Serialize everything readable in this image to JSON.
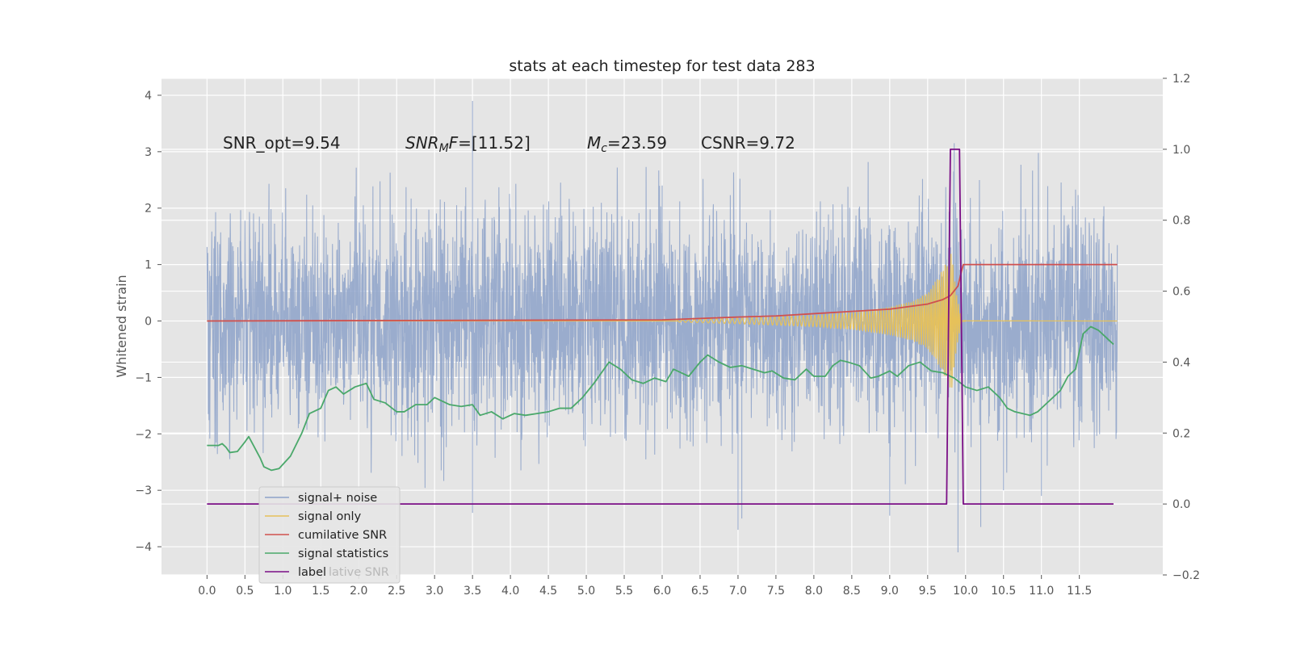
{
  "chart_data": {
    "type": "line",
    "title": "stats at each timestep for test data 283",
    "ylabel": "Whitened strain",
    "xlim": [
      -0.6,
      12.6
    ],
    "ylim": [
      -4.5,
      4.3
    ],
    "y2lim": [
      -0.2,
      1.2
    ],
    "x_ticks": [
      0.0,
      0.5,
      1.0,
      1.5,
      2.0,
      2.5,
      3.0,
      3.5,
      4.0,
      4.5,
      5.0,
      5.5,
      6.0,
      6.5,
      7.0,
      7.5,
      8.0,
      8.5,
      9.0,
      9.5,
      10.0,
      10.5,
      11.0,
      11.5
    ],
    "x_tick_labels": [
      "0.0",
      "0.5",
      "1.0",
      "1.5",
      "2.0",
      "2.5",
      "3.0",
      "3.5",
      "4.0",
      "4.5",
      "5.0",
      "5.5",
      "6.0",
      "6.5",
      "7.0",
      "7.5",
      "8.0",
      "8.5",
      "9.0",
      "9.5",
      "10.0",
      "10.5",
      "11.0",
      "11.5"
    ],
    "y_ticks": [
      -4,
      -3,
      -2,
      -1,
      0,
      1,
      2,
      3,
      4
    ],
    "y_tick_labels": [
      "−4",
      "−3",
      "−2",
      "−1",
      "0",
      "1",
      "2",
      "3",
      "4"
    ],
    "y2_ticks": [
      -0.2,
      0.0,
      0.2,
      0.4,
      0.6,
      0.8,
      1.0,
      1.2
    ],
    "y2_tick_labels": [
      "−0.2",
      "0.0",
      "0.2",
      "0.4",
      "0.6",
      "0.8",
      "1.0",
      "1.2"
    ],
    "grid": true,
    "legend_placement": "lower-left",
    "annotations": [
      {
        "id": "snr-opt",
        "text": "SNR_opt=9.54",
        "x": 0.2,
        "y": 3.2
      },
      {
        "id": "snr-mf",
        "text": "SNR_MF=[11.52]",
        "x": 2.6,
        "y": 3.2
      },
      {
        "id": "mc",
        "text": "M_c=23.59",
        "x": 5.0,
        "y": 3.2
      },
      {
        "id": "csnr",
        "text": "CSNR=9.72",
        "x": 6.5,
        "y": 3.2
      }
    ],
    "series": [
      {
        "name": "signal+ noise",
        "axis": "left",
        "color": "#8da2c9",
        "x_range": [
          0.0,
          12.0
        ],
        "typical_range": [
          -1.8,
          1.8
        ],
        "peak_points": [
          [
            3.5,
            3.9
          ],
          [
            3.5,
            -3.4
          ],
          [
            6.0,
            2.4
          ],
          [
            7.0,
            -3.7
          ],
          [
            7.05,
            -3.5
          ],
          [
            9.0,
            -3.45
          ],
          [
            9.85,
            3.15
          ],
          [
            9.9,
            -4.1
          ],
          [
            10.2,
            -3.65
          ],
          [
            10.5,
            -3.0
          ],
          [
            11.0,
            -3.1
          ]
        ]
      },
      {
        "name": "signal only",
        "axis": "left",
        "color": "#e6c15a",
        "envelope": [
          [
            6.2,
            0.02
          ],
          [
            7.0,
            0.05
          ],
          [
            8.0,
            0.1
          ],
          [
            8.5,
            0.15
          ],
          [
            9.0,
            0.25
          ],
          [
            9.3,
            0.35
          ],
          [
            9.5,
            0.5
          ],
          [
            9.65,
            0.8
          ],
          [
            9.75,
            1.05
          ],
          [
            9.82,
            1.25
          ],
          [
            9.88,
            0.5
          ],
          [
            9.95,
            0.01
          ],
          [
            12.0,
            0.0
          ]
        ]
      },
      {
        "name": "cumilative SNR",
        "axis": "left",
        "color": "#d0504f",
        "points": [
          [
            0.0,
            0.0
          ],
          [
            6.0,
            0.02
          ],
          [
            7.0,
            0.07
          ],
          [
            7.5,
            0.09
          ],
          [
            8.0,
            0.13
          ],
          [
            8.5,
            0.17
          ],
          [
            9.0,
            0.21
          ],
          [
            9.5,
            0.3
          ],
          [
            9.7,
            0.38
          ],
          [
            9.8,
            0.45
          ],
          [
            9.9,
            0.62
          ],
          [
            9.95,
            0.9
          ],
          [
            9.97,
            1.0
          ],
          [
            12.0,
            1.0
          ]
        ]
      },
      {
        "name": "signal statistics",
        "axis": "right",
        "color": "#4aa86a",
        "points": [
          [
            0.0,
            0.165
          ],
          [
            0.15,
            0.165
          ],
          [
            0.2,
            0.17
          ],
          [
            0.25,
            0.16
          ],
          [
            0.3,
            0.145
          ],
          [
            0.4,
            0.148
          ],
          [
            0.5,
            0.175
          ],
          [
            0.55,
            0.19
          ],
          [
            0.6,
            0.17
          ],
          [
            0.7,
            0.13
          ],
          [
            0.75,
            0.105
          ],
          [
            0.85,
            0.095
          ],
          [
            0.95,
            0.1
          ],
          [
            1.1,
            0.135
          ],
          [
            1.25,
            0.2
          ],
          [
            1.35,
            0.255
          ],
          [
            1.5,
            0.27
          ],
          [
            1.6,
            0.32
          ],
          [
            1.7,
            0.33
          ],
          [
            1.8,
            0.31
          ],
          [
            1.95,
            0.33
          ],
          [
            2.1,
            0.34
          ],
          [
            2.2,
            0.295
          ],
          [
            2.35,
            0.285
          ],
          [
            2.5,
            0.26
          ],
          [
            2.6,
            0.26
          ],
          [
            2.75,
            0.28
          ],
          [
            2.9,
            0.28
          ],
          [
            3.0,
            0.3
          ],
          [
            3.2,
            0.28
          ],
          [
            3.35,
            0.275
          ],
          [
            3.5,
            0.28
          ],
          [
            3.6,
            0.25
          ],
          [
            3.75,
            0.26
          ],
          [
            3.9,
            0.24
          ],
          [
            4.05,
            0.255
          ],
          [
            4.2,
            0.25
          ],
          [
            4.35,
            0.255
          ],
          [
            4.5,
            0.26
          ],
          [
            4.65,
            0.27
          ],
          [
            4.8,
            0.27
          ],
          [
            4.95,
            0.3
          ],
          [
            5.1,
            0.34
          ],
          [
            5.2,
            0.37
          ],
          [
            5.3,
            0.4
          ],
          [
            5.45,
            0.38
          ],
          [
            5.6,
            0.35
          ],
          [
            5.75,
            0.34
          ],
          [
            5.9,
            0.355
          ],
          [
            6.05,
            0.345
          ],
          [
            6.15,
            0.38
          ],
          [
            6.25,
            0.37
          ],
          [
            6.35,
            0.36
          ],
          [
            6.5,
            0.4
          ],
          [
            6.6,
            0.42
          ],
          [
            6.75,
            0.4
          ],
          [
            6.9,
            0.385
          ],
          [
            7.05,
            0.39
          ],
          [
            7.2,
            0.38
          ],
          [
            7.35,
            0.37
          ],
          [
            7.45,
            0.375
          ],
          [
            7.6,
            0.355
          ],
          [
            7.75,
            0.35
          ],
          [
            7.9,
            0.38
          ],
          [
            8.0,
            0.36
          ],
          [
            8.15,
            0.36
          ],
          [
            8.25,
            0.39
          ],
          [
            8.35,
            0.405
          ],
          [
            8.45,
            0.4
          ],
          [
            8.6,
            0.39
          ],
          [
            8.75,
            0.355
          ],
          [
            8.85,
            0.36
          ],
          [
            9.0,
            0.375
          ],
          [
            9.1,
            0.36
          ],
          [
            9.25,
            0.39
          ],
          [
            9.4,
            0.4
          ],
          [
            9.55,
            0.375
          ],
          [
            9.7,
            0.37
          ],
          [
            9.85,
            0.355
          ],
          [
            10.0,
            0.33
          ],
          [
            10.15,
            0.32
          ],
          [
            10.3,
            0.33
          ],
          [
            10.45,
            0.3
          ],
          [
            10.55,
            0.27
          ],
          [
            10.65,
            0.26
          ],
          [
            10.75,
            0.255
          ],
          [
            10.85,
            0.25
          ],
          [
            10.95,
            0.26
          ],
          [
            11.05,
            0.28
          ],
          [
            11.15,
            0.3
          ],
          [
            11.25,
            0.32
          ],
          [
            11.35,
            0.36
          ],
          [
            11.45,
            0.38
          ],
          [
            11.55,
            0.48
          ],
          [
            11.65,
            0.5
          ],
          [
            11.75,
            0.49
          ],
          [
            11.85,
            0.47
          ],
          [
            11.95,
            0.45
          ]
        ]
      },
      {
        "name": "label",
        "axis": "right",
        "color": "#7b0f86",
        "points": [
          [
            0.0,
            0.0
          ],
          [
            9.75,
            0.0
          ],
          [
            9.8,
            1.0
          ],
          [
            9.92,
            1.0
          ],
          [
            9.97,
            0.0
          ],
          [
            11.95,
            0.0
          ]
        ]
      }
    ],
    "legend": {
      "items": [
        "signal+ noise",
        "signal only",
        "cumilative SNR",
        "signal statistics",
        "label"
      ],
      "ghost_text": "lative SNR"
    }
  }
}
